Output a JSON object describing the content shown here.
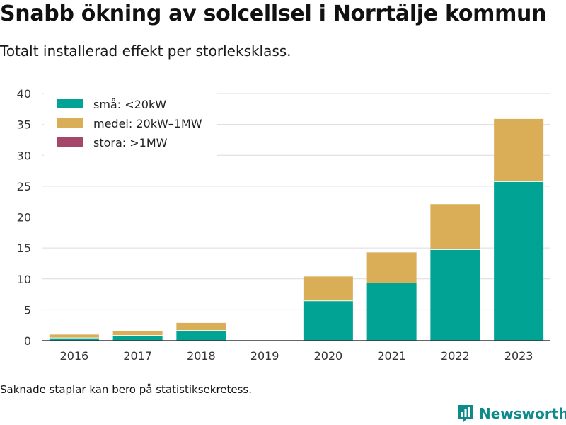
{
  "title": "Snabb ökning av solcellsel i Norrtälje kommun",
  "subtitle": "Totalt installerad effekt per storleksklass.",
  "note": "Saknade staplar kan bero på statistiksekretess.",
  "brand": {
    "name": "Newsworthy",
    "icon": "bar-chart-logo-icon",
    "color": "#0f8a8b"
  },
  "chart_data": {
    "type": "bar",
    "stacked": true,
    "categories": [
      "2016",
      "2017",
      "2018",
      "2019",
      "2020",
      "2021",
      "2022",
      "2023"
    ],
    "series": [
      {
        "name": "små: <20kW",
        "color": "#00a394",
        "values": [
          0.5,
          0.9,
          1.7,
          0,
          6.5,
          9.4,
          14.8,
          25.8
        ]
      },
      {
        "name": "medel: 20kW–1MW",
        "color": "#d9ae57",
        "values": [
          0.6,
          0.7,
          1.3,
          0,
          4.0,
          5.0,
          7.4,
          10.2
        ]
      },
      {
        "name": "stora: >1MW",
        "color": "#a5476a",
        "values": [
          0,
          0,
          0,
          0,
          0,
          0,
          0,
          0
        ]
      }
    ],
    "ylim": [
      0,
      40
    ],
    "yticks": [
      0,
      5,
      10,
      15,
      20,
      25,
      30,
      35,
      40
    ],
    "grid": true,
    "legend_position": "top-left"
  }
}
